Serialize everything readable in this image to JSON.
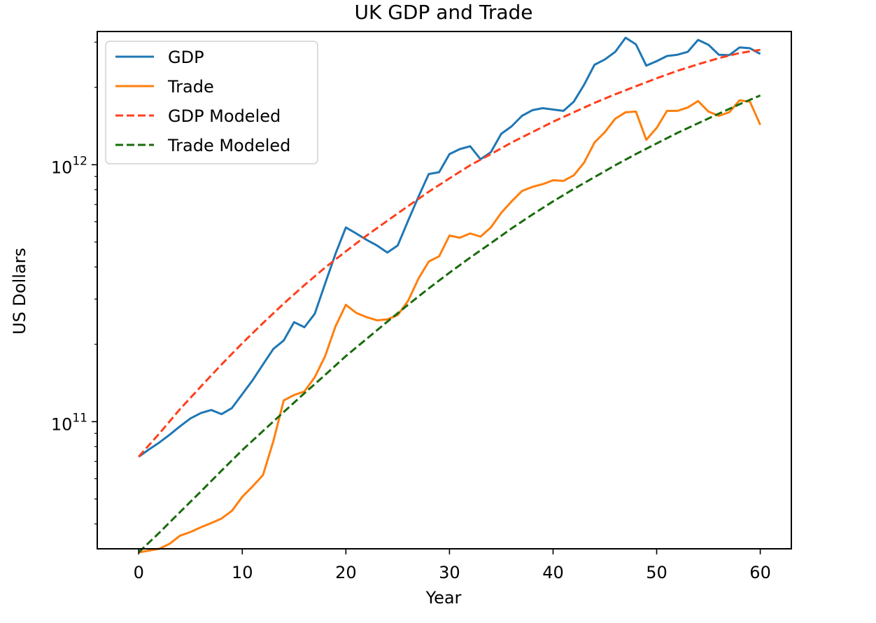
{
  "chart_data": {
    "type": "line",
    "title": "UK GDP and Trade",
    "xlabel": "Year",
    "ylabel": "US Dollars",
    "xlim": [
      -4,
      63
    ],
    "ylim": [
      32000000000.0,
      3300000000000.0
    ],
    "yscale": "log",
    "x_ticks": [
      0,
      10,
      20,
      30,
      40,
      50,
      60
    ],
    "y_ticks": [
      {
        "value": 100000000000.0,
        "base": "10",
        "exp": "11"
      },
      {
        "value": 1000000000000.0,
        "base": "10",
        "exp": "12"
      }
    ],
    "grid": false,
    "legend_position": "upper-left",
    "series": [
      {
        "name": "GDP",
        "color": "#1f77b4",
        "style": "solid",
        "x": [
          0,
          1,
          2,
          3,
          4,
          5,
          6,
          7,
          8,
          9,
          10,
          11,
          12,
          13,
          14,
          15,
          16,
          17,
          18,
          19,
          20,
          21,
          22,
          23,
          24,
          25,
          26,
          27,
          28,
          29,
          30,
          31,
          32,
          33,
          34,
          35,
          36,
          37,
          38,
          39,
          40,
          41,
          42,
          43,
          44,
          45,
          46,
          47,
          48,
          49,
          50,
          51,
          52,
          53,
          54,
          55,
          56,
          57,
          58,
          59,
          60
        ],
        "values": [
          73000000000.0,
          78000000000.0,
          83000000000.0,
          89000000000.0,
          96000000000.0,
          103000000000.0,
          108000000000.0,
          111000000000.0,
          107000000000.0,
          113000000000.0,
          128000000000.0,
          145000000000.0,
          167000000000.0,
          192000000000.0,
          207000000000.0,
          244000000000.0,
          233000000000.0,
          263000000000.0,
          345000000000.0,
          450000000000.0,
          570000000000.0,
          540000000000.0,
          510000000000.0,
          485000000000.0,
          455000000000.0,
          485000000000.0,
          605000000000.0,
          750000000000.0,
          920000000000.0,
          935000000000.0,
          1100000000000.0,
          1150000000000.0,
          1180000000000.0,
          1050000000000.0,
          1120000000000.0,
          1320000000000.0,
          1410000000000.0,
          1550000000000.0,
          1630000000000.0,
          1660000000000.0,
          1640000000000.0,
          1620000000000.0,
          1760000000000.0,
          2050000000000.0,
          2450000000000.0,
          2570000000000.0,
          2750000000000.0,
          3120000000000.0,
          2940000000000.0,
          2430000000000.0,
          2530000000000.0,
          2650000000000.0,
          2680000000000.0,
          2750000000000.0,
          3060000000000.0,
          2930000000000.0,
          2680000000000.0,
          2670000000000.0,
          2860000000000.0,
          2840000000000.0,
          2700000000000.0
        ]
      },
      {
        "name": "Trade",
        "color": "#ff7f0e",
        "style": "solid",
        "x": [
          0,
          1,
          2,
          3,
          4,
          5,
          6,
          7,
          8,
          9,
          10,
          11,
          12,
          13,
          14,
          15,
          16,
          17,
          18,
          19,
          20,
          21,
          22,
          23,
          24,
          25,
          26,
          27,
          28,
          29,
          30,
          31,
          32,
          33,
          34,
          35,
          36,
          37,
          38,
          39,
          40,
          41,
          42,
          43,
          44,
          45,
          46,
          47,
          48,
          49,
          50,
          51,
          52,
          53,
          54,
          55,
          56,
          57,
          58,
          59,
          60
        ],
        "values": [
          31000000000.0,
          31500000000.0,
          32000000000.0,
          33500000000.0,
          36000000000.0,
          37200000000.0,
          38800000000.0,
          40300000000.0,
          42000000000.0,
          45000000000.0,
          51000000000.0,
          56000000000.0,
          62000000000.0,
          84000000000.0,
          121000000000.0,
          127000000000.0,
          131000000000.0,
          149000000000.0,
          180000000000.0,
          235000000000.0,
          285000000000.0,
          265000000000.0,
          255000000000.0,
          248000000000.0,
          250000000000.0,
          260000000000.0,
          295000000000.0,
          360000000000.0,
          420000000000.0,
          440000000000.0,
          530000000000.0,
          520000000000.0,
          540000000000.0,
          525000000000.0,
          570000000000.0,
          650000000000.0,
          720000000000.0,
          790000000000.0,
          820000000000.0,
          840000000000.0,
          870000000000.0,
          865000000000.0,
          910000000000.0,
          1020000000000.0,
          1220000000000.0,
          1340000000000.0,
          1510000000000.0,
          1600000000000.0,
          1610000000000.0,
          1250000000000.0,
          1390000000000.0,
          1620000000000.0,
          1620000000000.0,
          1670000000000.0,
          1770000000000.0,
          1610000000000.0,
          1550000000000.0,
          1600000000000.0,
          1780000000000.0,
          1760000000000.0,
          1430000000000.0
        ]
      },
      {
        "name": "GDP Modeled",
        "color": "#ff3f1c",
        "style": "dashed",
        "x": [
          0,
          2,
          4,
          6,
          8,
          10,
          12,
          14,
          16,
          18,
          20,
          22,
          24,
          26,
          28,
          30,
          32,
          34,
          36,
          38,
          40,
          42,
          44,
          46,
          48,
          50,
          52,
          54,
          56,
          58,
          60
        ],
        "values": [
          73000000000.0,
          90000000000.0,
          112000000000.0,
          137000000000.0,
          167000000000.0,
          202000000000.0,
          242000000000.0,
          288000000000.0,
          340000000000.0,
          398000000000.0,
          460000000000.0,
          530000000000.0,
          605000000000.0,
          690000000000.0,
          785000000000.0,
          885000000000.0,
          995000000000.0,
          1100000000000.0,
          1220000000000.0,
          1340000000000.0,
          1470000000000.0,
          1600000000000.0,
          1740000000000.0,
          1880000000000.0,
          2020000000000.0,
          2170000000000.0,
          2320000000000.0,
          2460000000000.0,
          2600000000000.0,
          2720000000000.0,
          2800000000000.0
        ]
      },
      {
        "name": "Trade Modeled",
        "color": "#1a6b0d",
        "style": "dashed",
        "x": [
          0,
          2,
          4,
          6,
          8,
          10,
          12,
          14,
          16,
          18,
          20,
          22,
          24,
          26,
          28,
          30,
          32,
          34,
          36,
          38,
          40,
          42,
          44,
          46,
          48,
          50,
          52,
          54,
          56,
          58,
          60
        ],
        "values": [
          31000000000.0,
          37000000000.0,
          44500000000.0,
          53500000000.0,
          64500000000.0,
          77500000000.0,
          92000000000.0,
          109000000000.0,
          129000000000.0,
          152000000000.0,
          180000000000.0,
          210000000000.0,
          245000000000.0,
          285000000000.0,
          330000000000.0,
          380000000000.0,
          435000000000.0,
          495000000000.0,
          565000000000.0,
          640000000000.0,
          720000000000.0,
          805000000000.0,
          895000000000.0,
          995000000000.0,
          1100000000000.0,
          1210000000000.0,
          1330000000000.0,
          1450000000000.0,
          1580000000000.0,
          1720000000000.0,
          1860000000000.0
        ]
      }
    ]
  }
}
